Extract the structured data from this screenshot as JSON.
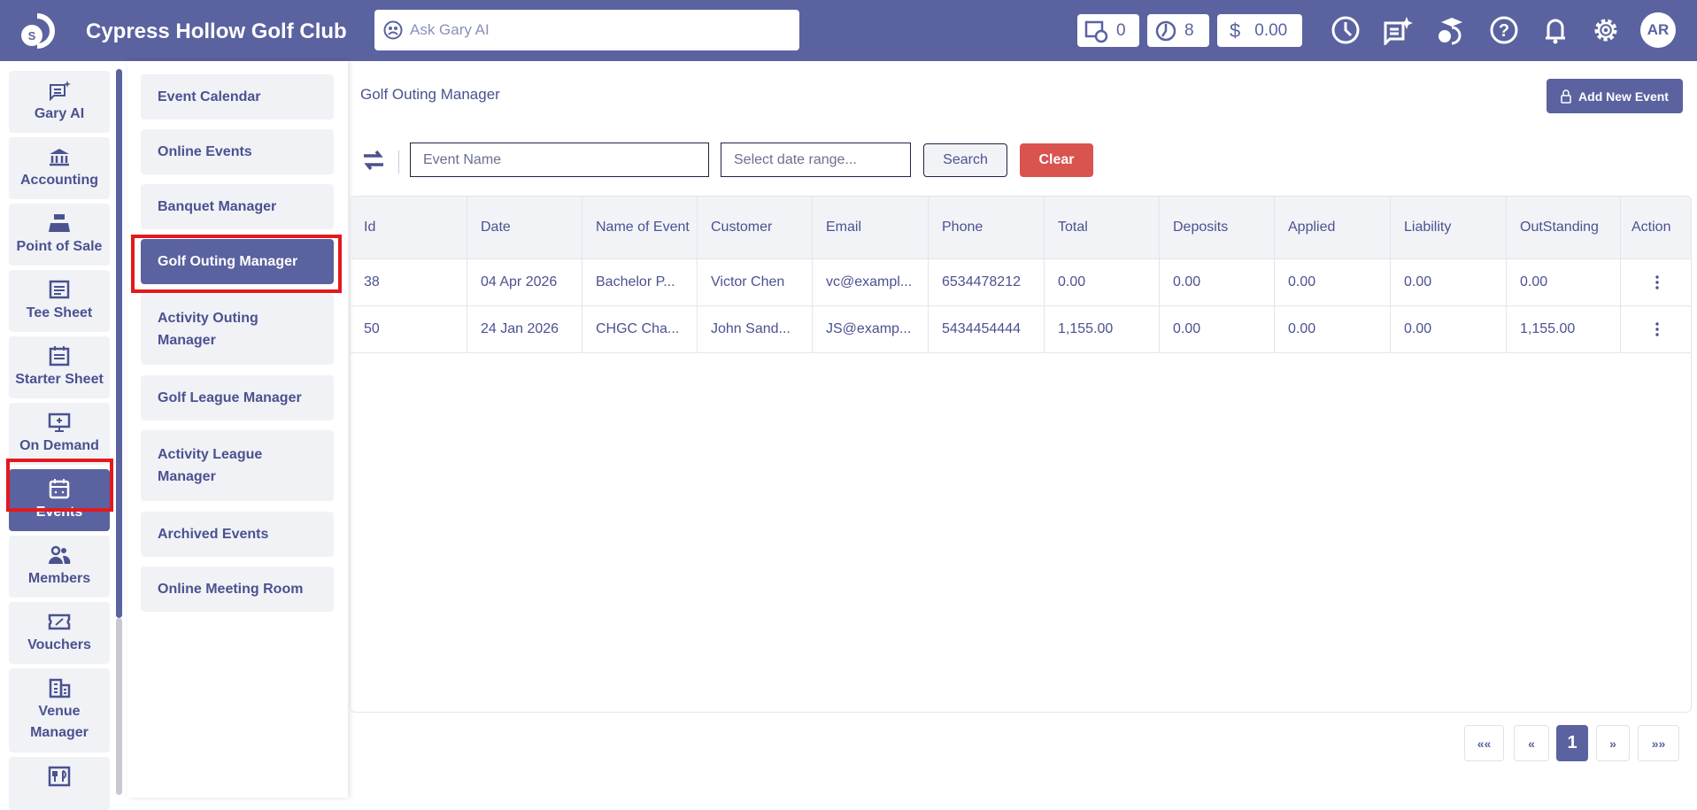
{
  "header": {
    "brand": "Cypress Hollow Golf Club",
    "ask_placeholder": "Ask Gary AI",
    "counters": [
      {
        "icon": "tee-time-clock-icon",
        "value": "0"
      },
      {
        "icon": "timer-icon",
        "value": "8"
      },
      {
        "icon": "dollar-icon",
        "value": "0.00"
      }
    ],
    "icons": [
      "clock-icon",
      "ai-chat-icon",
      "training-icon",
      "help-icon",
      "bell-icon",
      "gear-icon"
    ],
    "avatar": "AR",
    "color": "#5a62a0"
  },
  "sidebar": {
    "items": [
      {
        "label": "Gary AI",
        "icon": "ai-chat-icon"
      },
      {
        "label": "Accounting",
        "icon": "bank-icon"
      },
      {
        "label": "Point of Sale",
        "icon": "register-icon"
      },
      {
        "label": "Tee Sheet",
        "icon": "sheet-icon"
      },
      {
        "label": "Starter Sheet",
        "icon": "calendar-list-icon"
      },
      {
        "label": "On Demand",
        "icon": "monitor-icon"
      },
      {
        "label": "Events",
        "icon": "calendar-icon",
        "active": true
      },
      {
        "label": "Members",
        "icon": "members-icon"
      },
      {
        "label": "Vouchers",
        "icon": "voucher-icon"
      },
      {
        "label": "Venue Manager",
        "icon": "building-icon"
      },
      {
        "label": "",
        "icon": "restaurant-icon"
      }
    ]
  },
  "submenu": {
    "items": [
      {
        "label": "Event Calendar"
      },
      {
        "label": "Online Events"
      },
      {
        "label": "Banquet Manager"
      },
      {
        "label": "Golf Outing Manager",
        "active": true
      },
      {
        "label": "Activity Outing Manager"
      },
      {
        "label": "Golf League Manager"
      },
      {
        "label": "Activity League Manager"
      },
      {
        "label": "Archived Events"
      },
      {
        "label": "Online Meeting Room"
      }
    ]
  },
  "main": {
    "title": "Golf Outing Manager",
    "add_button": "Add New Event",
    "filters": {
      "event_name_placeholder": "Event Name",
      "date_placeholder": "Select date range...",
      "search": "Search",
      "clear": "Clear"
    },
    "table": {
      "columns": [
        "Id",
        "Date",
        "Name of Event",
        "Customer",
        "Email",
        "Phone",
        "Total",
        "Deposits",
        "Applied",
        "Liability",
        "OutStanding",
        "Action"
      ],
      "rows": [
        [
          "38",
          "04 Apr 2026",
          "Bachelor P...",
          "Victor Chen",
          "vc@exampl...",
          "6534478212",
          "0.00",
          "0.00",
          "0.00",
          "0.00",
          "0.00"
        ],
        [
          "50",
          "24 Jan 2026",
          "CHGC Cha...",
          "John Sand...",
          "JS@examp...",
          "5434454444",
          "1,155.00",
          "0.00",
          "0.00",
          "0.00",
          "1,155.00"
        ]
      ]
    },
    "pagination": {
      "first": "««",
      "prev": "«",
      "current": "1",
      "next": "»",
      "last": "»»"
    }
  }
}
